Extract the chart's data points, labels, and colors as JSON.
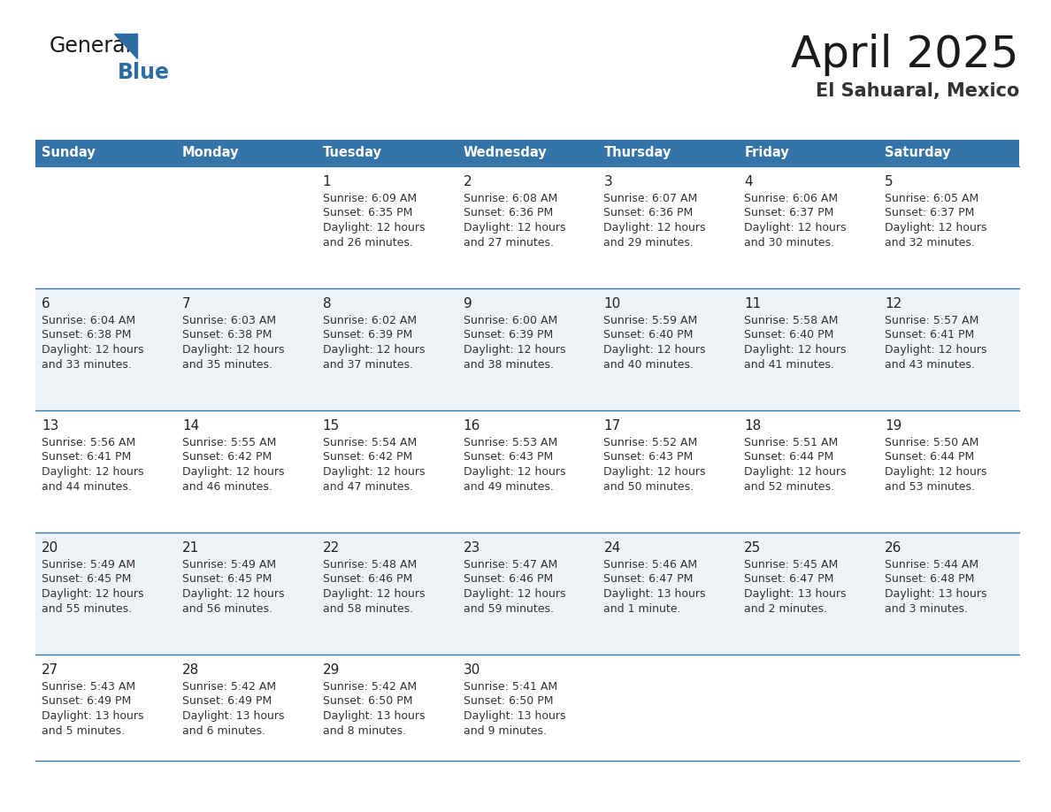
{
  "title": "April 2025",
  "subtitle": "El Sahuaral, Mexico",
  "days_of_week": [
    "Sunday",
    "Monday",
    "Tuesday",
    "Wednesday",
    "Thursday",
    "Friday",
    "Saturday"
  ],
  "header_bg": "#3574a8",
  "header_text": "#ffffff",
  "row_bg_light": "#eef2f7",
  "row_bg_white": "#ffffff",
  "border_color": "#3574a8",
  "text_color": "#333333",
  "day_num_color": "#222222",
  "calendar_data": [
    [
      {
        "day": null,
        "sunrise": null,
        "sunset": null,
        "daylight": null
      },
      {
        "day": null,
        "sunrise": null,
        "sunset": null,
        "daylight": null
      },
      {
        "day": 1,
        "sunrise": "6:09 AM",
        "sunset": "6:35 PM",
        "daylight": "12 hours",
        "daylight2": "and 26 minutes."
      },
      {
        "day": 2,
        "sunrise": "6:08 AM",
        "sunset": "6:36 PM",
        "daylight": "12 hours",
        "daylight2": "and 27 minutes."
      },
      {
        "day": 3,
        "sunrise": "6:07 AM",
        "sunset": "6:36 PM",
        "daylight": "12 hours",
        "daylight2": "and 29 minutes."
      },
      {
        "day": 4,
        "sunrise": "6:06 AM",
        "sunset": "6:37 PM",
        "daylight": "12 hours",
        "daylight2": "and 30 minutes."
      },
      {
        "day": 5,
        "sunrise": "6:05 AM",
        "sunset": "6:37 PM",
        "daylight": "12 hours",
        "daylight2": "and 32 minutes."
      }
    ],
    [
      {
        "day": 6,
        "sunrise": "6:04 AM",
        "sunset": "6:38 PM",
        "daylight": "12 hours",
        "daylight2": "and 33 minutes."
      },
      {
        "day": 7,
        "sunrise": "6:03 AM",
        "sunset": "6:38 PM",
        "daylight": "12 hours",
        "daylight2": "and 35 minutes."
      },
      {
        "day": 8,
        "sunrise": "6:02 AM",
        "sunset": "6:39 PM",
        "daylight": "12 hours",
        "daylight2": "and 37 minutes."
      },
      {
        "day": 9,
        "sunrise": "6:00 AM",
        "sunset": "6:39 PM",
        "daylight": "12 hours",
        "daylight2": "and 38 minutes."
      },
      {
        "day": 10,
        "sunrise": "5:59 AM",
        "sunset": "6:40 PM",
        "daylight": "12 hours",
        "daylight2": "and 40 minutes."
      },
      {
        "day": 11,
        "sunrise": "5:58 AM",
        "sunset": "6:40 PM",
        "daylight": "12 hours",
        "daylight2": "and 41 minutes."
      },
      {
        "day": 12,
        "sunrise": "5:57 AM",
        "sunset": "6:41 PM",
        "daylight": "12 hours",
        "daylight2": "and 43 minutes."
      }
    ],
    [
      {
        "day": 13,
        "sunrise": "5:56 AM",
        "sunset": "6:41 PM",
        "daylight": "12 hours",
        "daylight2": "and 44 minutes."
      },
      {
        "day": 14,
        "sunrise": "5:55 AM",
        "sunset": "6:42 PM",
        "daylight": "12 hours",
        "daylight2": "and 46 minutes."
      },
      {
        "day": 15,
        "sunrise": "5:54 AM",
        "sunset": "6:42 PM",
        "daylight": "12 hours",
        "daylight2": "and 47 minutes."
      },
      {
        "day": 16,
        "sunrise": "5:53 AM",
        "sunset": "6:43 PM",
        "daylight": "12 hours",
        "daylight2": "and 49 minutes."
      },
      {
        "day": 17,
        "sunrise": "5:52 AM",
        "sunset": "6:43 PM",
        "daylight": "12 hours",
        "daylight2": "and 50 minutes."
      },
      {
        "day": 18,
        "sunrise": "5:51 AM",
        "sunset": "6:44 PM",
        "daylight": "12 hours",
        "daylight2": "and 52 minutes."
      },
      {
        "day": 19,
        "sunrise": "5:50 AM",
        "sunset": "6:44 PM",
        "daylight": "12 hours",
        "daylight2": "and 53 minutes."
      }
    ],
    [
      {
        "day": 20,
        "sunrise": "5:49 AM",
        "sunset": "6:45 PM",
        "daylight": "12 hours",
        "daylight2": "and 55 minutes."
      },
      {
        "day": 21,
        "sunrise": "5:49 AM",
        "sunset": "6:45 PM",
        "daylight": "12 hours",
        "daylight2": "and 56 minutes."
      },
      {
        "day": 22,
        "sunrise": "5:48 AM",
        "sunset": "6:46 PM",
        "daylight": "12 hours",
        "daylight2": "and 58 minutes."
      },
      {
        "day": 23,
        "sunrise": "5:47 AM",
        "sunset": "6:46 PM",
        "daylight": "12 hours",
        "daylight2": "and 59 minutes."
      },
      {
        "day": 24,
        "sunrise": "5:46 AM",
        "sunset": "6:47 PM",
        "daylight": "13 hours",
        "daylight2": "and 1 minute."
      },
      {
        "day": 25,
        "sunrise": "5:45 AM",
        "sunset": "6:47 PM",
        "daylight": "13 hours",
        "daylight2": "and 2 minutes."
      },
      {
        "day": 26,
        "sunrise": "5:44 AM",
        "sunset": "6:48 PM",
        "daylight": "13 hours",
        "daylight2": "and 3 minutes."
      }
    ],
    [
      {
        "day": 27,
        "sunrise": "5:43 AM",
        "sunset": "6:49 PM",
        "daylight": "13 hours",
        "daylight2": "and 5 minutes."
      },
      {
        "day": 28,
        "sunrise": "5:42 AM",
        "sunset": "6:49 PM",
        "daylight": "13 hours",
        "daylight2": "and 6 minutes."
      },
      {
        "day": 29,
        "sunrise": "5:42 AM",
        "sunset": "6:50 PM",
        "daylight": "13 hours",
        "daylight2": "and 8 minutes."
      },
      {
        "day": 30,
        "sunrise": "5:41 AM",
        "sunset": "6:50 PM",
        "daylight": "13 hours",
        "daylight2": "and 9 minutes."
      },
      {
        "day": null,
        "sunrise": null,
        "sunset": null,
        "daylight": null,
        "daylight2": null
      },
      {
        "day": null,
        "sunrise": null,
        "sunset": null,
        "daylight": null,
        "daylight2": null
      },
      {
        "day": null,
        "sunrise": null,
        "sunset": null,
        "daylight": null,
        "daylight2": null
      }
    ]
  ],
  "logo_blue_color": "#2e6da4"
}
